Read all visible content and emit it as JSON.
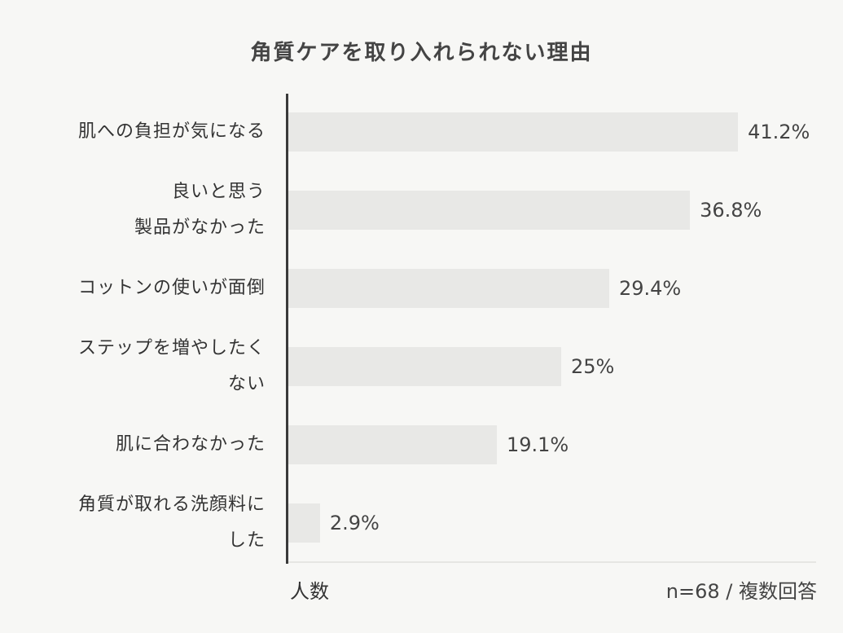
{
  "chart_data": {
    "type": "bar",
    "orientation": "horizontal",
    "title": "角質ケアを取り入れられない理由",
    "categories": [
      "肌への負担が気になる",
      "良いと思う製品がなかった",
      "コットンの使いが面倒",
      "ステップを増やしたくない",
      "肌に合わなかった",
      "角質が取れる洗顔料にした"
    ],
    "category_lines": [
      [
        "肌への負担が気になる"
      ],
      [
        "良いと思う",
        "製品がなかった"
      ],
      [
        "コットンの使いが面倒"
      ],
      [
        "ステップを増やしたく",
        "ない"
      ],
      [
        "肌に合わなかった"
      ],
      [
        "角質が取れる洗顔料に",
        "した"
      ]
    ],
    "values": [
      41.2,
      36.8,
      29.4,
      25,
      19.1,
      2.9
    ],
    "value_labels": [
      "41.2%",
      "36.8%",
      "29.4%",
      "25%",
      "19.1%",
      "2.9%"
    ],
    "xlabel": "人数",
    "ylabel": "",
    "note": "n=68 / 複数回答",
    "bar_color": "#e8e8e6",
    "grid": false,
    "legend": null
  },
  "footer": {
    "left": "人数",
    "right": "n=68 / 複数回答"
  }
}
